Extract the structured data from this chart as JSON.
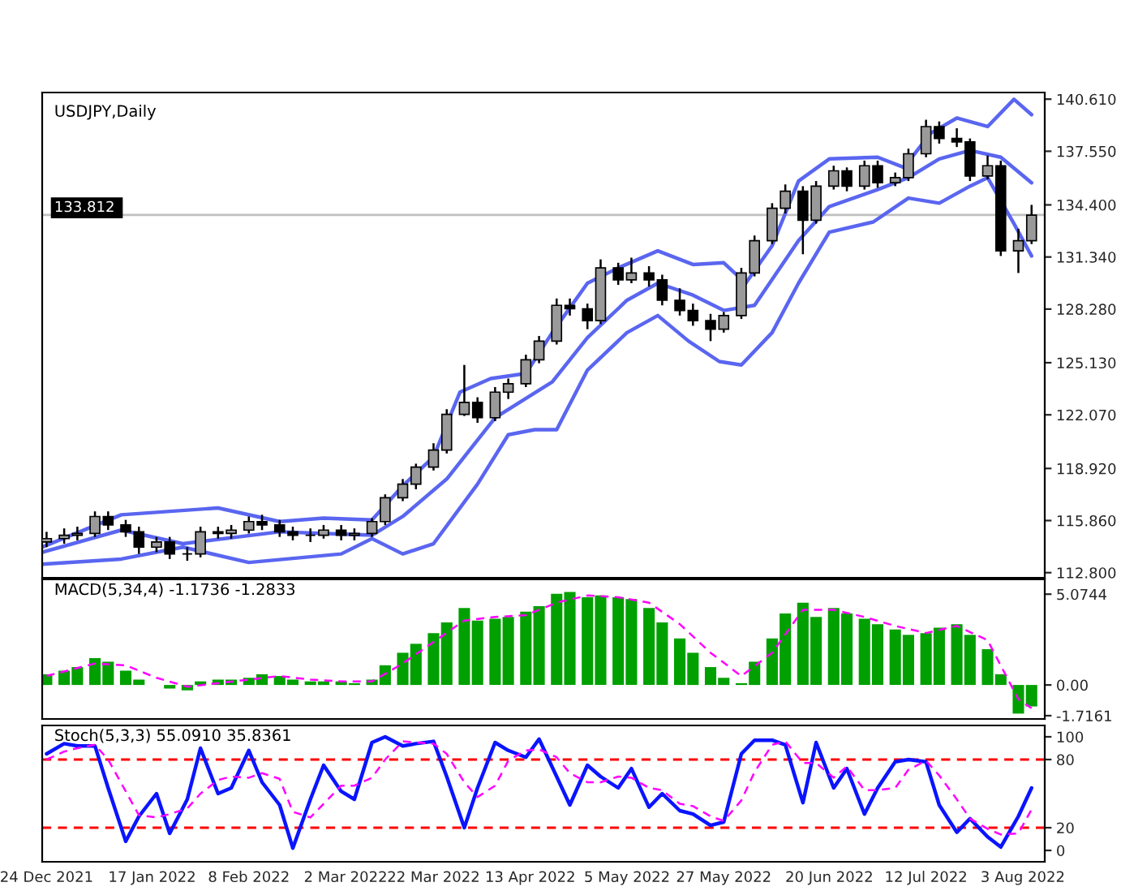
{
  "chart_data": [
    {
      "type": "candlestick",
      "title": "USDJPY,Daily",
      "x": [
        "2021-12-24",
        "2021-12-28",
        "2021-12-31",
        "2022-01-04",
        "2022-01-07",
        "2022-01-11",
        "2022-01-14",
        "2022-01-18",
        "2022-01-21",
        "2022-01-25",
        "2022-01-28",
        "2022-02-01",
        "2022-02-04",
        "2022-02-08",
        "2022-02-11",
        "2022-02-15",
        "2022-02-18",
        "2022-02-22",
        "2022-02-25",
        "2022-03-01",
        "2022-03-04",
        "2022-03-08",
        "2022-03-11",
        "2022-03-15",
        "2022-03-18",
        "2022-03-22",
        "2022-03-25",
        "2022-03-29",
        "2022-04-01",
        "2022-04-05",
        "2022-04-08",
        "2022-04-12",
        "2022-04-15",
        "2022-04-19",
        "2022-04-22",
        "2022-04-26",
        "2022-04-29",
        "2022-05-03",
        "2022-05-06",
        "2022-05-10",
        "2022-05-13",
        "2022-05-17",
        "2022-05-20",
        "2022-05-24",
        "2022-05-27",
        "2022-05-31",
        "2022-06-03",
        "2022-06-07",
        "2022-06-10",
        "2022-06-14",
        "2022-06-17",
        "2022-06-21",
        "2022-06-24",
        "2022-06-28",
        "2022-07-01",
        "2022-07-05",
        "2022-07-08",
        "2022-07-12",
        "2022-07-15",
        "2022-07-19",
        "2022-07-22",
        "2022-07-26",
        "2022-07-29",
        "2022-08-02",
        "2022-08-05"
      ],
      "ohlc": [
        [
          114.6,
          115.2,
          114.3,
          114.8
        ],
        [
          114.8,
          115.4,
          114.5,
          115.0
        ],
        [
          115.0,
          115.5,
          114.7,
          115.1
        ],
        [
          115.1,
          116.4,
          114.9,
          116.1
        ],
        [
          116.1,
          116.4,
          115.3,
          115.6
        ],
        [
          115.6,
          115.9,
          114.9,
          115.2
        ],
        [
          115.2,
          115.5,
          113.9,
          114.3
        ],
        [
          114.3,
          114.9,
          114.0,
          114.6
        ],
        [
          114.6,
          114.9,
          113.6,
          113.9
        ],
        [
          113.9,
          114.3,
          113.5,
          113.9
        ],
        [
          113.9,
          115.5,
          113.7,
          115.2
        ],
        [
          115.2,
          115.5,
          114.8,
          115.1
        ],
        [
          115.1,
          115.6,
          114.8,
          115.3
        ],
        [
          115.3,
          116.1,
          115.1,
          115.8
        ],
        [
          115.8,
          116.2,
          115.3,
          115.6
        ],
        [
          115.6,
          115.9,
          114.9,
          115.2
        ],
        [
          115.2,
          115.5,
          114.7,
          115.0
        ],
        [
          115.0,
          115.4,
          114.6,
          115.0
        ],
        [
          115.0,
          115.6,
          114.8,
          115.3
        ],
        [
          115.3,
          115.6,
          114.7,
          115.0
        ],
        [
          115.0,
          115.4,
          114.7,
          115.1
        ],
        [
          115.1,
          116.0,
          114.9,
          115.8
        ],
        [
          115.8,
          117.4,
          115.6,
          117.2
        ],
        [
          117.2,
          118.3,
          117.0,
          118.0
        ],
        [
          118.0,
          119.2,
          117.7,
          119.0
        ],
        [
          119.0,
          120.4,
          118.8,
          120.0
        ],
        [
          120.0,
          122.4,
          119.8,
          122.1
        ],
        [
          122.1,
          125.0,
          122.0,
          122.8
        ],
        [
          122.8,
          123.1,
          121.6,
          121.9
        ],
        [
          121.9,
          123.7,
          121.7,
          123.4
        ],
        [
          123.4,
          124.2,
          123.0,
          123.9
        ],
        [
          123.9,
          125.6,
          123.7,
          125.3
        ],
        [
          125.3,
          126.7,
          125.1,
          126.4
        ],
        [
          126.4,
          128.9,
          126.2,
          128.5
        ],
        [
          128.5,
          128.9,
          127.9,
          128.3
        ],
        [
          128.3,
          128.6,
          127.1,
          127.6
        ],
        [
          127.6,
          131.2,
          127.4,
          130.7
        ],
        [
          130.7,
          131.0,
          129.7,
          130.0
        ],
        [
          130.0,
          131.3,
          129.8,
          130.4
        ],
        [
          130.4,
          130.8,
          129.6,
          130.0
        ],
        [
          130.0,
          130.3,
          128.5,
          128.8
        ],
        [
          128.8,
          129.5,
          127.9,
          128.2
        ],
        [
          128.2,
          128.6,
          127.3,
          127.6
        ],
        [
          127.6,
          128.0,
          126.4,
          127.1
        ],
        [
          127.1,
          128.1,
          126.9,
          127.9
        ],
        [
          127.9,
          130.7,
          127.7,
          130.4
        ],
        [
          130.4,
          132.6,
          130.2,
          132.3
        ],
        [
          132.3,
          134.5,
          132.1,
          134.2
        ],
        [
          134.2,
          135.6,
          133.9,
          135.2
        ],
        [
          135.2,
          135.5,
          131.5,
          133.5
        ],
        [
          133.5,
          135.8,
          133.3,
          135.5
        ],
        [
          135.5,
          136.7,
          135.3,
          136.4
        ],
        [
          136.4,
          136.6,
          135.2,
          135.5
        ],
        [
          135.5,
          137.0,
          135.3,
          136.7
        ],
        [
          136.7,
          137.0,
          135.4,
          135.7
        ],
        [
          135.7,
          136.3,
          135.5,
          136.0
        ],
        [
          136.0,
          137.7,
          135.8,
          137.4
        ],
        [
          137.4,
          139.4,
          137.2,
          139.0
        ],
        [
          139.0,
          139.3,
          138.0,
          138.3
        ],
        [
          138.3,
          138.9,
          137.8,
          138.1
        ],
        [
          138.1,
          138.3,
          135.8,
          136.1
        ],
        [
          136.1,
          137.3,
          135.9,
          136.7
        ],
        [
          136.7,
          137.0,
          131.4,
          131.7
        ],
        [
          131.7,
          133.0,
          130.4,
          132.3
        ],
        [
          132.3,
          134.4,
          132.1,
          133.8
        ]
      ],
      "series": [
        {
          "type": "line",
          "color": "#5a66f0",
          "x": [
            "2021-12-23",
            "2022-01-10",
            "2022-02-01",
            "2022-02-15",
            "2022-02-25",
            "2022-03-08",
            "2022-03-15",
            "2022-03-22",
            "2022-03-28",
            "2022-04-04",
            "2022-04-12",
            "2022-04-18",
            "2022-04-26",
            "2022-05-03",
            "2022-05-12",
            "2022-05-20",
            "2022-05-27",
            "2022-06-01",
            "2022-06-07",
            "2022-06-13",
            "2022-06-20",
            "2022-07-01",
            "2022-07-07",
            "2022-07-13",
            "2022-07-19",
            "2022-07-26",
            "2022-08-01",
            "2022-08-05"
          ],
          "values": [
            114.3,
            116.2,
            116.6,
            115.8,
            116.0,
            115.9,
            117.9,
            119.6,
            123.4,
            124.2,
            124.5,
            126.9,
            129.8,
            130.7,
            131.7,
            130.9,
            131.0,
            129.8,
            132.0,
            135.8,
            137.1,
            137.2,
            136.6,
            138.6,
            139.5,
            139.0,
            140.6,
            139.7
          ]
        },
        {
          "type": "line",
          "color": "#5a66f0",
          "x": [
            "2021-12-23",
            "2022-01-10",
            "2022-01-24",
            "2022-02-15",
            "2022-03-08",
            "2022-03-15",
            "2022-03-25",
            "2022-04-05",
            "2022-04-18",
            "2022-04-26",
            "2022-05-05",
            "2022-05-12",
            "2022-05-20",
            "2022-05-27",
            "2022-06-03",
            "2022-06-13",
            "2022-06-20",
            "2022-07-01",
            "2022-07-08",
            "2022-07-15",
            "2022-07-22",
            "2022-07-29",
            "2022-08-05"
          ],
          "values": [
            114.0,
            115.3,
            114.5,
            115.2,
            115.0,
            116.1,
            118.3,
            121.9,
            124.0,
            126.6,
            128.8,
            129.8,
            129.1,
            128.2,
            128.5,
            132.3,
            134.3,
            135.3,
            136.0,
            137.1,
            137.6,
            137.2,
            135.7
          ]
        },
        {
          "type": "line",
          "color": "#5a66f0",
          "x": [
            "2021-12-23",
            "2022-01-10",
            "2022-01-24",
            "2022-02-08",
            "2022-03-01",
            "2022-03-08",
            "2022-03-15",
            "2022-03-22",
            "2022-04-01",
            "2022-04-08",
            "2022-04-14",
            "2022-04-19",
            "2022-04-26",
            "2022-05-05",
            "2022-05-12",
            "2022-05-19",
            "2022-05-26",
            "2022-05-31",
            "2022-06-07",
            "2022-06-13",
            "2022-06-20",
            "2022-06-30",
            "2022-07-08",
            "2022-07-15",
            "2022-07-22",
            "2022-07-26",
            "2022-08-01",
            "2022-08-05"
          ],
          "values": [
            113.3,
            113.6,
            114.3,
            113.4,
            113.9,
            114.8,
            113.9,
            114.5,
            118.0,
            120.9,
            121.2,
            121.2,
            124.7,
            126.9,
            127.9,
            126.4,
            125.2,
            125.0,
            126.9,
            129.8,
            132.8,
            133.4,
            134.8,
            134.5,
            135.5,
            136.0,
            133.3,
            131.4
          ]
        }
      ],
      "xlim": [
        "2021-12-23",
        "2022-08-08"
      ],
      "ylim": [
        112.5,
        141.0
      ],
      "yticks": [
        {
          "value": 112.8,
          "label": "112.800"
        },
        {
          "value": 115.86,
          "label": "115.860"
        },
        {
          "value": 118.92,
          "label": "118.920"
        },
        {
          "value": 122.07,
          "label": "122.070"
        },
        {
          "value": 125.13,
          "label": "125.130"
        },
        {
          "value": 128.28,
          "label": "128.280"
        },
        {
          "value": 131.34,
          "label": "131.340"
        },
        {
          "value": 134.4,
          "label": "134.400"
        },
        {
          "value": 137.55,
          "label": "137.550"
        },
        {
          "value": 140.61,
          "label": "140.610"
        }
      ],
      "ref_lines": [
        {
          "axis": "y",
          "value": 133.812,
          "label": "133.812",
          "color": "#c0c0c0"
        }
      ],
      "tick_labels": "y"
    },
    {
      "type": "bar",
      "title": "MACD(5,34,4) -1.1736 -1.2833",
      "x": [
        "2021-12-24",
        "2021-12-28",
        "2021-12-31",
        "2022-01-04",
        "2022-01-07",
        "2022-01-11",
        "2022-01-14",
        "2022-01-18",
        "2022-01-21",
        "2022-01-25",
        "2022-01-28",
        "2022-02-01",
        "2022-02-04",
        "2022-02-08",
        "2022-02-11",
        "2022-02-15",
        "2022-02-18",
        "2022-02-22",
        "2022-02-25",
        "2022-03-01",
        "2022-03-04",
        "2022-03-08",
        "2022-03-11",
        "2022-03-15",
        "2022-03-18",
        "2022-03-22",
        "2022-03-25",
        "2022-03-29",
        "2022-04-01",
        "2022-04-05",
        "2022-04-08",
        "2022-04-12",
        "2022-04-15",
        "2022-04-19",
        "2022-04-22",
        "2022-04-26",
        "2022-04-29",
        "2022-05-03",
        "2022-05-06",
        "2022-05-10",
        "2022-05-13",
        "2022-05-17",
        "2022-05-20",
        "2022-05-24",
        "2022-05-27",
        "2022-05-31",
        "2022-06-03",
        "2022-06-07",
        "2022-06-10",
        "2022-06-14",
        "2022-06-17",
        "2022-06-21",
        "2022-06-24",
        "2022-06-28",
        "2022-07-01",
        "2022-07-05",
        "2022-07-08",
        "2022-07-12",
        "2022-07-15",
        "2022-07-19",
        "2022-07-22",
        "2022-07-26",
        "2022-07-29",
        "2022-08-02",
        "2022-08-05"
      ],
      "series": [
        {
          "type": "bar",
          "color": "#00a000",
          "values": [
            0.6,
            0.8,
            1.0,
            1.5,
            1.3,
            0.8,
            0.3,
            0.0,
            -0.2,
            -0.3,
            0.2,
            0.3,
            0.3,
            0.4,
            0.6,
            0.5,
            0.3,
            0.2,
            0.2,
            0.2,
            0.1,
            0.3,
            1.1,
            1.8,
            2.3,
            2.9,
            3.5,
            4.3,
            3.6,
            3.7,
            3.8,
            4.1,
            4.4,
            5.1,
            5.2,
            4.9,
            5.0,
            4.9,
            4.8,
            4.3,
            3.5,
            2.6,
            1.8,
            1.0,
            0.4,
            0.1,
            1.3,
            2.6,
            4.0,
            4.6,
            3.8,
            4.3,
            4.0,
            3.7,
            3.4,
            3.1,
            2.8,
            2.9,
            3.2,
            3.4,
            2.8,
            2.0,
            0.6,
            -1.6,
            -1.2
          ]
        },
        {
          "type": "line",
          "color": "#ff00ff",
          "line_style": "dashed",
          "x": [
            "2021-12-24",
            "2022-01-04",
            "2022-01-11",
            "2022-01-18",
            "2022-01-25",
            "2022-02-01",
            "2022-02-08",
            "2022-02-15",
            "2022-02-22",
            "2022-03-01",
            "2022-03-08",
            "2022-03-15",
            "2022-03-22",
            "2022-03-29",
            "2022-04-05",
            "2022-04-12",
            "2022-04-19",
            "2022-04-26",
            "2022-05-03",
            "2022-05-10",
            "2022-05-17",
            "2022-05-24",
            "2022-05-31",
            "2022-06-07",
            "2022-06-14",
            "2022-06-21",
            "2022-06-28",
            "2022-07-05",
            "2022-07-12",
            "2022-07-19",
            "2022-07-26",
            "2022-08-02",
            "2022-08-05"
          ],
          "values": [
            0.5,
            1.2,
            1.1,
            0.4,
            -0.1,
            0.1,
            0.3,
            0.5,
            0.3,
            0.2,
            0.2,
            1.2,
            2.4,
            3.6,
            3.8,
            3.9,
            4.6,
            5.0,
            4.9,
            4.6,
            3.4,
            1.8,
            0.5,
            1.8,
            4.2,
            4.2,
            3.8,
            3.3,
            2.9,
            3.3,
            2.5,
            -0.8,
            -1.3
          ]
        }
      ],
      "xlim": [
        "2021-12-23",
        "2022-08-08"
      ],
      "ylim": [
        -1.9,
        5.9
      ],
      "yticks": [
        5.0744,
        {
          "value": 0,
          "label": "0.00"
        },
        -1.7161
      ],
      "tick_labels": "y"
    },
    {
      "type": "line",
      "title": "Stoch(5,3,3) 55.0910 35.8361",
      "x": [
        "2021-12-24",
        "2021-12-28",
        "2021-12-31",
        "2022-01-04",
        "2022-01-07",
        "2022-01-11",
        "2022-01-14",
        "2022-01-18",
        "2022-01-21",
        "2022-01-25",
        "2022-01-28",
        "2022-02-01",
        "2022-02-04",
        "2022-02-08",
        "2022-02-11",
        "2022-02-15",
        "2022-02-18",
        "2022-02-22",
        "2022-02-25",
        "2022-03-01",
        "2022-03-04",
        "2022-03-08",
        "2022-03-11",
        "2022-03-15",
        "2022-03-18",
        "2022-03-22",
        "2022-03-25",
        "2022-03-29",
        "2022-04-01",
        "2022-04-05",
        "2022-04-08",
        "2022-04-12",
        "2022-04-15",
        "2022-04-19",
        "2022-04-22",
        "2022-04-26",
        "2022-04-29",
        "2022-05-03",
        "2022-05-06",
        "2022-05-10",
        "2022-05-13",
        "2022-05-17",
        "2022-05-20",
        "2022-05-24",
        "2022-05-27",
        "2022-05-31",
        "2022-06-03",
        "2022-06-07",
        "2022-06-10",
        "2022-06-14",
        "2022-06-17",
        "2022-06-21",
        "2022-06-24",
        "2022-06-28",
        "2022-07-01",
        "2022-07-05",
        "2022-07-08",
        "2022-07-12",
        "2022-07-15",
        "2022-07-19",
        "2022-07-22",
        "2022-07-26",
        "2022-07-29",
        "2022-08-02",
        "2022-08-05"
      ],
      "series": [
        {
          "color": "#0a14ff",
          "values": [
            85,
            94,
            92,
            92,
            55,
            8,
            30,
            50,
            15,
            45,
            90,
            50,
            55,
            88,
            60,
            40,
            2,
            45,
            75,
            52,
            45,
            95,
            100,
            92,
            94,
            96,
            65,
            20,
            55,
            95,
            88,
            82,
            98,
            65,
            40,
            75,
            65,
            55,
            72,
            38,
            50,
            35,
            32,
            22,
            25,
            85,
            97,
            97,
            93,
            42,
            95,
            55,
            72,
            32,
            55,
            78,
            80,
            78,
            40,
            16,
            28,
            12,
            3,
            30,
            55
          ]
        },
        {
          "color": "#ff00ff",
          "line_style": "dashed",
          "values": [
            80,
            87,
            90,
            93,
            80,
            52,
            31,
            29,
            32,
            37,
            50,
            62,
            65,
            64,
            68,
            63,
            34,
            29,
            41,
            57,
            57,
            64,
            80,
            96,
            95,
            94,
            85,
            60,
            47,
            57,
            79,
            88,
            89,
            82,
            68,
            60,
            60,
            65,
            64,
            55,
            53,
            41,
            39,
            30,
            26,
            44,
            69,
            93,
            96,
            77,
            77,
            64,
            74,
            53,
            53,
            55,
            71,
            79,
            66,
            45,
            28,
            19,
            14,
            15,
            36
          ]
        }
      ],
      "xlim": [
        "2021-12-23",
        "2022-08-08"
      ],
      "ylim": [
        -10,
        110
      ],
      "xticks": [
        {
          "value": "2021-12-24",
          "label": "24 Dec 2021"
        },
        {
          "value": "2022-01-17",
          "label": "17 Jan 2022"
        },
        {
          "value": "2022-02-08",
          "label": "8 Feb 2022"
        },
        {
          "value": "2022-03-02",
          "label": "2 Mar 2022"
        },
        {
          "value": "2022-03-22",
          "label": "22 Mar 2022"
        },
        {
          "value": "2022-04-13",
          "label": "13 Apr 2022"
        },
        {
          "value": "2022-05-05",
          "label": "5 May 2022"
        },
        {
          "value": "2022-05-27",
          "label": "27 May 2022"
        },
        {
          "value": "2022-06-20",
          "label": "20 Jun 2022"
        },
        {
          "value": "2022-07-12",
          "label": "12 Jul 2022"
        },
        {
          "value": "2022-08-03",
          "label": "3 Aug 2022"
        }
      ],
      "yticks": [
        100,
        80,
        20,
        0
      ],
      "ref_lines": [
        {
          "axis": "y",
          "value": 80,
          "color": "#ff0000",
          "line_style": "dashed"
        },
        {
          "axis": "y",
          "value": 20,
          "color": "#ff0000",
          "line_style": "dashed"
        }
      ]
    }
  ]
}
